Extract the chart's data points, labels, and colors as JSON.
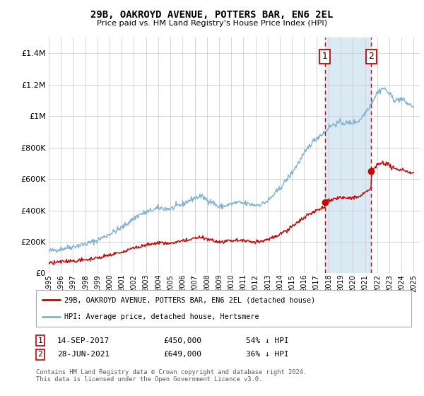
{
  "title": "29B, OAKROYD AVENUE, POTTERS BAR, EN6 2EL",
  "subtitle": "Price paid vs. HM Land Registry's House Price Index (HPI)",
  "hpi_color": "#7fb3d3",
  "price_color": "#cc0000",
  "background_color": "#ffffff",
  "grid_color": "#cccccc",
  "highlight_bg": "#daeaf5",
  "legend_label_red": "29B, OAKROYD AVENUE, POTTERS BAR, EN6 2EL (detached house)",
  "legend_label_blue": "HPI: Average price, detached house, Hertsmere",
  "footer": "Contains HM Land Registry data © Crown copyright and database right 2024.\nThis data is licensed under the Open Government Licence v3.0.",
  "ylim": [
    0,
    1500000
  ],
  "yticks": [
    0,
    200000,
    400000,
    600000,
    800000,
    1000000,
    1200000,
    1400000
  ],
  "xlim_start": 1995.0,
  "xlim_end": 2025.5,
  "marker1_x": 2017.71,
  "marker2_x": 2021.5,
  "marker1_price": 450000,
  "marker2_price": 649000,
  "xtick_years": [
    1995,
    1996,
    1997,
    1998,
    1999,
    2000,
    2001,
    2002,
    2003,
    2004,
    2005,
    2006,
    2007,
    2008,
    2009,
    2010,
    2011,
    2012,
    2013,
    2014,
    2015,
    2016,
    2017,
    2018,
    2019,
    2020,
    2021,
    2022,
    2023,
    2024,
    2025
  ]
}
